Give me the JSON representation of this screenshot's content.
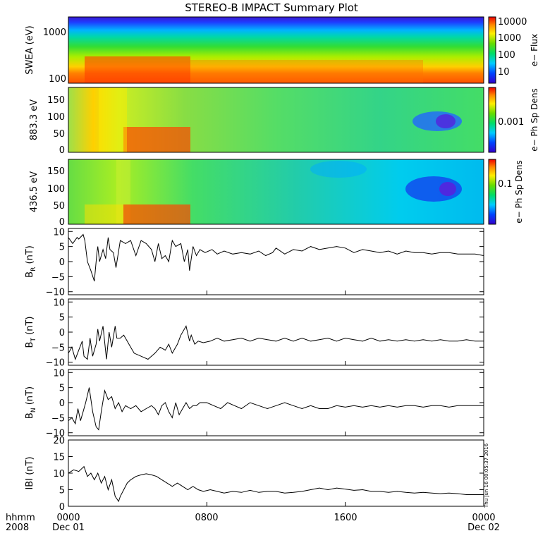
{
  "title": "STEREO-B IMPACT Summary Plot",
  "footer": {
    "left_line1": "hhmm",
    "left_line2": "2008",
    "x_ticks": [
      "0000",
      "0800",
      "1600",
      "0000"
    ],
    "x_dates": [
      "Dec 01",
      "",
      "",
      "Dec 02"
    ],
    "stamp": "Thu Jun 16 00:05:37 2016"
  },
  "chart_data": [
    {
      "type": "heatmap",
      "ylabel": "SWEA (eV)",
      "yticks": [
        "1000",
        "100"
      ],
      "colorbar": {
        "label": "e− Flux",
        "ticks": [
          "10000",
          "1000",
          "100",
          "10"
        ],
        "scale": "log"
      }
    },
    {
      "type": "heatmap",
      "ylabel": "883.3 eV",
      "yticks": [
        "150",
        "100",
        "50",
        "0"
      ],
      "colorbar": {
        "label": "e− Ph Sp Dens",
        "ticks": [
          "0.001"
        ],
        "scale": "log"
      }
    },
    {
      "type": "heatmap",
      "ylabel": "436.5 eV",
      "yticks": [
        "150",
        "100",
        "50",
        "0"
      ],
      "colorbar": {
        "label": "e− Ph Sp Dens",
        "ticks": [
          "0.1"
        ],
        "scale": "log"
      }
    },
    {
      "type": "line",
      "ylabel_main": "B",
      "ylabel_sub": "R",
      "ylabel_unit": " (nT)",
      "ylim": [
        -11,
        11
      ],
      "yticks": [
        "10",
        "5",
        "0",
        "−5",
        "−10"
      ],
      "x_hours": [
        0,
        0.25,
        0.5,
        0.6,
        0.85,
        0.95,
        1.1,
        1.3,
        1.5,
        1.65,
        1.7,
        1.8,
        2,
        2.15,
        2.3,
        2.4,
        2.6,
        2.75,
        3,
        3.3,
        3.6,
        3.9,
        4.2,
        4.5,
        4.8,
        5,
        5.2,
        5.4,
        5.6,
        5.8,
        6,
        6.2,
        6.5,
        6.7,
        6.9,
        7,
        7.2,
        7.4,
        7.6,
        7.9,
        8.3,
        8.6,
        9,
        9.5,
        10,
        10.5,
        11,
        11.4,
        11.8,
        12,
        12.5,
        13,
        13.5,
        14,
        14.5,
        15,
        15.5,
        16,
        16.5,
        17,
        17.5,
        18,
        18.5,
        19,
        19.5,
        20,
        20.5,
        21,
        21.5,
        22,
        22.5,
        23,
        23.5,
        24
      ],
      "y": [
        8,
        6,
        8,
        7.5,
        9,
        7,
        0,
        -3,
        -6.5,
        3,
        5,
        0,
        4,
        1,
        8,
        4,
        3,
        -2,
        7,
        6,
        7,
        2,
        7,
        6,
        4,
        0,
        6,
        1,
        2,
        0,
        7,
        5,
        6,
        0,
        4,
        -3,
        5,
        2,
        4,
        3,
        4,
        2.5,
        3.5,
        2.5,
        3,
        2.5,
        3.5,
        2,
        3,
        4.5,
        2.5,
        4,
        3.5,
        5,
        4,
        4.5,
        5,
        4.5,
        3,
        4,
        3.5,
        3,
        3.5,
        2.5,
        3.5,
        3,
        3,
        2.5,
        3,
        3,
        2.5,
        2.5,
        2.5,
        2
      ]
    },
    {
      "type": "line",
      "ylabel_main": "B",
      "ylabel_sub": "T",
      "ylabel_unit": " (nT)",
      "ylim": [
        -11,
        11
      ],
      "yticks": [
        "10",
        "5",
        "0",
        "−5",
        "−10"
      ],
      "x_hours": [
        0,
        0.2,
        0.4,
        0.6,
        0.8,
        0.9,
        1.1,
        1.25,
        1.4,
        1.6,
        1.7,
        1.8,
        2,
        2.2,
        2.35,
        2.5,
        2.7,
        2.8,
        3,
        3.2,
        3.4,
        3.6,
        3.8,
        4.2,
        4.6,
        5,
        5.3,
        5.6,
        5.8,
        6,
        6.3,
        6.5,
        6.8,
        7,
        7.1,
        7.3,
        7.5,
        7.8,
        8.2,
        8.6,
        9,
        9.5,
        10,
        10.5,
        11,
        11.5,
        12,
        12.5,
        13,
        13.5,
        14,
        14.5,
        15,
        15.5,
        16,
        16.5,
        17,
        17.5,
        18,
        18.5,
        19,
        19.5,
        20,
        20.5,
        21,
        21.5,
        22,
        22.5,
        23,
        23.5,
        24
      ],
      "y": [
        -7,
        -5,
        -9,
        -6,
        -3,
        -8,
        -9,
        -2,
        -8,
        -4,
        1,
        -3,
        2,
        -9,
        0,
        -5,
        2,
        -2,
        -2,
        -1,
        -3,
        -5,
        -7,
        -8,
        -9,
        -7,
        -5,
        -6,
        -4,
        -7,
        -4,
        -1,
        2,
        -3,
        -1,
        -4,
        -3,
        -3.5,
        -3,
        -2,
        -3,
        -2.5,
        -2,
        -3,
        -2,
        -2.5,
        -3,
        -2,
        -3,
        -2,
        -3,
        -2.5,
        -2,
        -3,
        -2,
        -2.5,
        -3,
        -2,
        -3,
        -2.5,
        -3,
        -2.5,
        -3,
        -2.5,
        -3,
        -2.5,
        -3,
        -3,
        -2.5,
        -3,
        -3
      ]
    },
    {
      "type": "line",
      "ylabel_main": "B",
      "ylabel_sub": "N",
      "ylabel_unit": " (nT)",
      "ylim": [
        -11,
        11
      ],
      "yticks": [
        "10",
        "5",
        "0",
        "−5",
        "−10"
      ],
      "x_hours": [
        0,
        0.2,
        0.4,
        0.55,
        0.7,
        0.85,
        1,
        1.2,
        1.4,
        1.6,
        1.75,
        1.9,
        2.1,
        2.3,
        2.5,
        2.7,
        2.9,
        3.1,
        3.3,
        3.6,
        3.9,
        4.2,
        4.5,
        4.8,
        5,
        5.2,
        5.4,
        5.6,
        5.8,
        6,
        6.2,
        6.4,
        6.6,
        6.8,
        7,
        7.2,
        7.4,
        7.6,
        8,
        8.4,
        8.8,
        9.2,
        9.6,
        10,
        10.5,
        11,
        11.5,
        12,
        12.5,
        13,
        13.5,
        14,
        14.5,
        15,
        15.5,
        16,
        16.5,
        17,
        17.5,
        18,
        18.5,
        19,
        19.5,
        20,
        20.5,
        21,
        21.5,
        22,
        22.5,
        23,
        23.5,
        24
      ],
      "y": [
        -6,
        -5,
        -7,
        -2,
        -6,
        -3,
        0,
        5,
        -3,
        -8,
        -9,
        -3,
        4,
        1,
        2,
        -2,
        0,
        -3,
        -1,
        -2,
        -1,
        -3,
        -2,
        -1,
        -2,
        -4,
        -1,
        0,
        -3,
        -5,
        0,
        -4,
        -2,
        0,
        -2,
        -1,
        -1,
        0,
        0,
        -1,
        -2,
        0,
        -1,
        -2,
        0,
        -1,
        -2,
        -1,
        0,
        -1,
        -2,
        -1,
        -2,
        -2,
        -1,
        -1.5,
        -1,
        -1.5,
        -1,
        -1.5,
        -1,
        -1.5,
        -1,
        -1,
        -1.5,
        -1,
        -1,
        -1.5,
        -1,
        -1,
        -1,
        -1
      ]
    },
    {
      "type": "line",
      "ylabel_main": "IBI",
      "ylabel_sub": "",
      "ylabel_unit": " (nT)",
      "ylim": [
        0,
        20
      ],
      "yticks": [
        "20",
        "15",
        "10",
        "5",
        "0"
      ],
      "x_hours": [
        0,
        0.3,
        0.6,
        0.9,
        1.1,
        1.3,
        1.5,
        1.7,
        1.9,
        2.1,
        2.3,
        2.5,
        2.7,
        2.9,
        3,
        3.2,
        3.4,
        3.6,
        3.9,
        4.2,
        4.5,
        4.8,
        5.1,
        5.4,
        5.7,
        6,
        6.3,
        6.6,
        6.9,
        7.2,
        7.5,
        7.8,
        8.2,
        8.6,
        9,
        9.5,
        10,
        10.5,
        11,
        11.5,
        12,
        12.5,
        13,
        13.5,
        14,
        14.5,
        15,
        15.5,
        16,
        16.5,
        17,
        17.5,
        18,
        18.5,
        19,
        19.5,
        20,
        20.5,
        21,
        21.5,
        22,
        22.5,
        23,
        23.5,
        24
      ],
      "y": [
        10,
        11,
        10.5,
        12,
        9,
        10,
        8,
        10,
        7,
        9,
        5,
        8,
        3,
        1.5,
        3,
        5,
        7,
        8,
        9,
        9.5,
        9.8,
        9.5,
        9,
        8,
        7,
        6,
        7,
        6,
        5,
        6,
        5,
        4.5,
        5,
        4.5,
        4,
        4.5,
        4.2,
        4.8,
        4.2,
        4.5,
        4.5,
        4,
        4.2,
        4.5,
        5,
        5.5,
        5,
        5.5,
        5.2,
        4.8,
        5,
        4.5,
        4.5,
        4.2,
        4.5,
        4.2,
        4,
        4.2,
        4,
        3.8,
        4,
        3.8,
        3.5,
        3.5,
        3.5
      ]
    }
  ]
}
